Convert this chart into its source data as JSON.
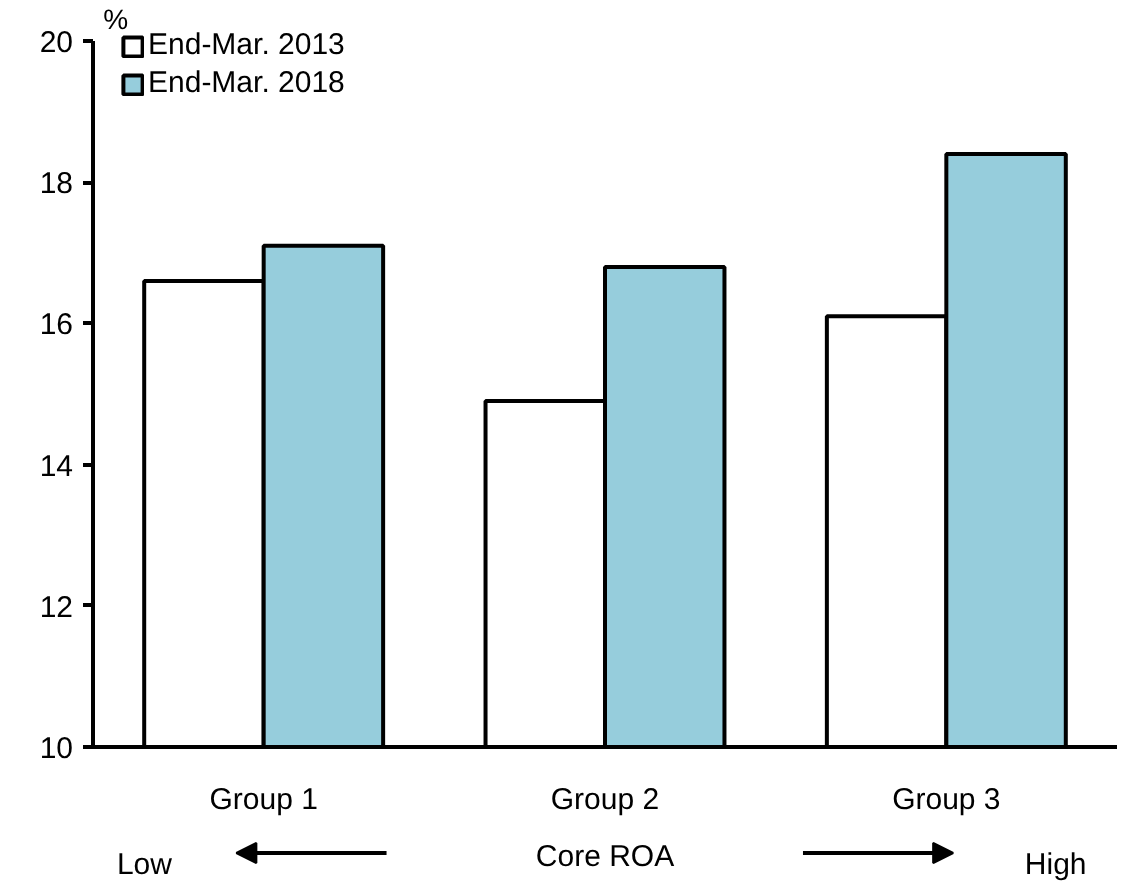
{
  "chart_data": {
    "type": "bar",
    "ylabel": "%",
    "xlabel": "Core ROA",
    "categories": [
      "Group 1",
      "Group 2",
      "Group 3"
    ],
    "series": [
      {
        "name": "End-Mar. 2013",
        "color": "#ffffff",
        "values": [
          16.6,
          14.9,
          16.1
        ]
      },
      {
        "name": "End-Mar. 2018",
        "color": "#96cddc",
        "values": [
          17.1,
          16.8,
          18.4
        ]
      }
    ],
    "ylim": [
      10,
      20
    ],
    "yticks": [
      10,
      12,
      14,
      16,
      18,
      20
    ],
    "grid": false,
    "legend": "top left",
    "annotations": [
      "Low",
      "High"
    ]
  }
}
